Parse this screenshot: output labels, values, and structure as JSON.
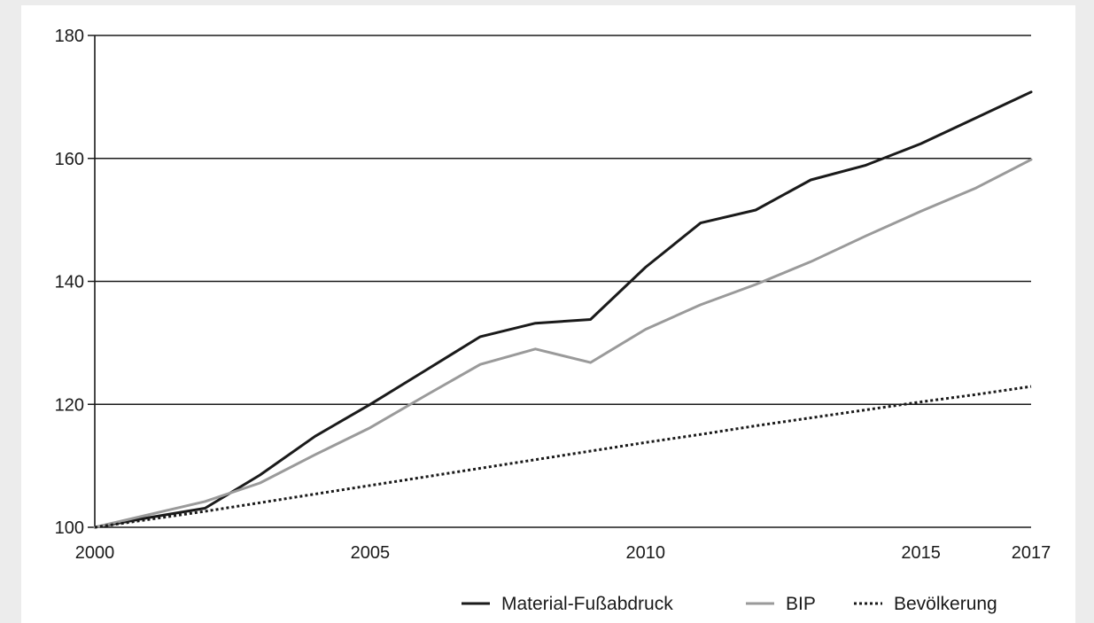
{
  "chart_data": {
    "type": "line",
    "title": "",
    "xlabel": "",
    "ylabel": "",
    "xlim": [
      2000,
      2017
    ],
    "ylim": [
      100,
      180
    ],
    "x_ticks": [
      2000,
      2005,
      2010,
      2015,
      2017
    ],
    "y_ticks": [
      100,
      120,
      140,
      160,
      180
    ],
    "grid": "horizontal",
    "legend_position": "bottom-right",
    "x": [
      2000,
      2001,
      2002,
      2003,
      2004,
      2005,
      2006,
      2007,
      2008,
      2009,
      2010,
      2011,
      2012,
      2013,
      2014,
      2015,
      2016,
      2017
    ],
    "series": [
      {
        "name": "Material-Fußabdruck",
        "color": "#1a1a1a",
        "style": "solid",
        "values": [
          100,
          101.6,
          103.1,
          108.5,
          114.8,
          120.0,
          125.5,
          131.0,
          133.2,
          133.8,
          142.3,
          149.5,
          151.6,
          156.5,
          158.9,
          162.4,
          166.6,
          170.8
        ]
      },
      {
        "name": "BIP",
        "color": "#9a9a9a",
        "style": "solid",
        "values": [
          100,
          102.1,
          104.2,
          107.2,
          111.8,
          116.2,
          121.4,
          126.5,
          129.0,
          126.8,
          132.2,
          136.2,
          139.5,
          143.2,
          147.4,
          151.4,
          155.2,
          159.8
        ]
      },
      {
        "name": "Bevölkerung",
        "color": "#1a1a1a",
        "style": "dotted",
        "values": [
          100,
          101.3,
          102.6,
          104.0,
          105.4,
          106.8,
          108.2,
          109.6,
          111.0,
          112.4,
          113.8,
          115.1,
          116.5,
          117.8,
          119.1,
          120.4,
          121.6,
          122.9
        ]
      }
    ]
  }
}
